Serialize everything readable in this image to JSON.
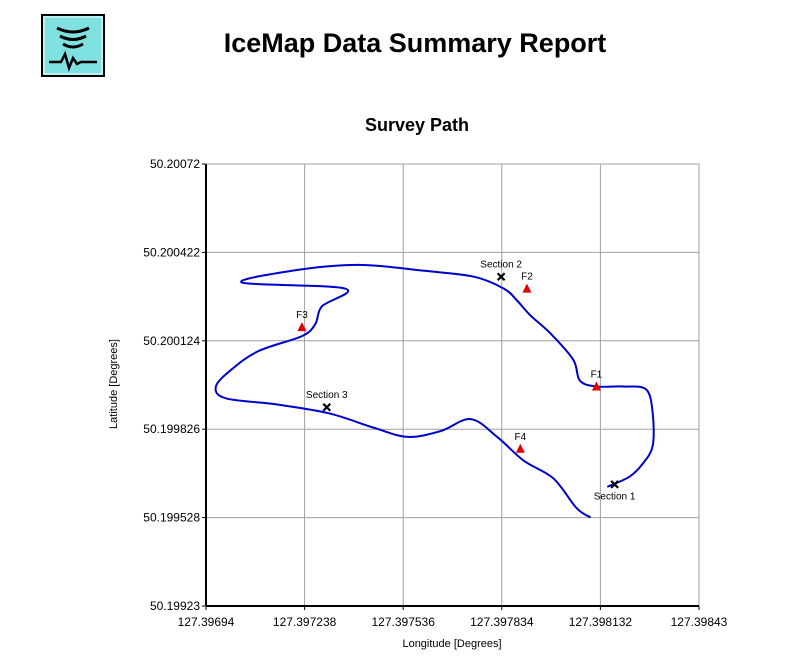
{
  "report": {
    "title": "IceMap Data Summary Report"
  },
  "colors": {
    "logo_bg": "#7fe0e0",
    "path": "#0000cc",
    "marker_f": "#e00000",
    "marker_section": "#000000",
    "grid": "#a0a0a0"
  },
  "chart_data": {
    "type": "line",
    "title": "Survey Path",
    "xlabel": "Longitude [Degrees]",
    "ylabel": "Latitude [Degrees]",
    "xlim": [
      127.39694,
      127.39843
    ],
    "ylim": [
      50.19923,
      50.20072
    ],
    "xticks": [
      "127.39694",
      "127.397238",
      "127.397536",
      "127.397834",
      "127.398132",
      "127.39843"
    ],
    "yticks": [
      "50.19923",
      "50.199528",
      "50.199826",
      "50.200124",
      "50.200422",
      "50.20072"
    ],
    "xtick_values": [
      127.39694,
      127.397238,
      127.397536,
      127.397834,
      127.398132,
      127.39843
    ],
    "ytick_values": [
      50.19923,
      50.199528,
      50.199826,
      50.200124,
      50.200422,
      50.20072
    ],
    "grid": true,
    "series": [
      {
        "points": [
          [
            127.398155,
            50.199633
          ],
          [
            127.39822,
            50.199666
          ],
          [
            127.39826,
            50.19971
          ],
          [
            127.39829,
            50.19977
          ],
          [
            127.39829,
            50.19988
          ],
          [
            127.39827,
            50.19996
          ],
          [
            127.3982,
            50.19997
          ],
          [
            127.39812,
            50.19997
          ],
          [
            127.39807,
            50.19999
          ],
          [
            127.39805,
            50.20006
          ],
          [
            127.39798,
            50.20015
          ],
          [
            127.39792,
            50.20021
          ],
          [
            127.39788,
            50.20026
          ],
          [
            127.39784,
            50.2003
          ],
          [
            127.39775,
            50.20034
          ],
          [
            127.3976,
            50.20036
          ],
          [
            127.3974,
            50.20038
          ],
          [
            127.3972,
            50.20036
          ],
          [
            127.39705,
            50.20032
          ],
          [
            127.39736,
            50.2003
          ],
          [
            127.39729,
            50.20024
          ],
          [
            127.39727,
            50.20018
          ],
          [
            127.39723,
            50.20014
          ],
          [
            127.3971,
            50.20009
          ],
          [
            127.39702,
            50.20003
          ],
          [
            127.39697,
            50.19997
          ],
          [
            127.397,
            50.19993
          ],
          [
            127.39715,
            50.19991
          ],
          [
            127.39731,
            50.19988
          ],
          [
            127.39745,
            50.19983
          ],
          [
            127.39755,
            50.1998
          ],
          [
            127.39765,
            50.19982
          ],
          [
            127.39774,
            50.19986
          ],
          [
            127.39782,
            50.1998
          ],
          [
            127.3979,
            50.19972
          ],
          [
            127.39799,
            50.19966
          ],
          [
            127.39806,
            50.19956
          ],
          [
            127.3981,
            50.19953
          ]
        ]
      }
    ],
    "markers": [
      {
        "label": "F1",
        "kind": "triangle",
        "x": 127.39812,
        "y": 50.19997,
        "label_pos": "above"
      },
      {
        "label": "F2",
        "kind": "triangle",
        "x": 127.39791,
        "y": 50.2003,
        "label_pos": "above"
      },
      {
        "label": "F3",
        "kind": "triangle",
        "x": 127.39723,
        "y": 50.20017,
        "label_pos": "above"
      },
      {
        "label": "F4",
        "kind": "triangle",
        "x": 127.39789,
        "y": 50.19976,
        "label_pos": "above"
      },
      {
        "label": "Section 1",
        "kind": "cross",
        "x": 127.398175,
        "y": 50.19964,
        "label_pos": "below"
      },
      {
        "label": "Section 2",
        "kind": "cross",
        "x": 127.397832,
        "y": 50.20034,
        "label_pos": "above"
      },
      {
        "label": "Section 3",
        "kind": "cross",
        "x": 127.397305,
        "y": 50.1999,
        "label_pos": "above"
      }
    ]
  }
}
